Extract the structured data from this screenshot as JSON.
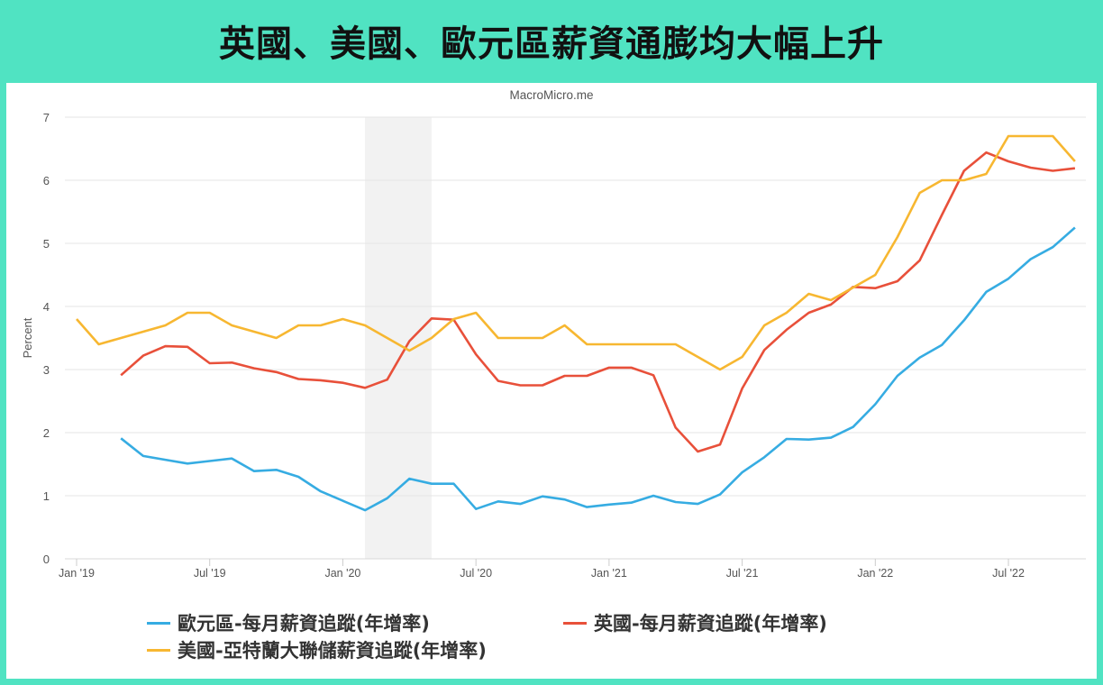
{
  "title": "英國、美國、歐元區薪資通膨均大幅上升",
  "chart_data": {
    "type": "line",
    "credit": "MacroMicro.me",
    "ylabel": "Percent",
    "ylim": [
      0,
      7
    ],
    "yticks": [
      0,
      1,
      2,
      3,
      4,
      5,
      6,
      7
    ],
    "xticks": [
      {
        "label": "Jan '19",
        "date": "2019-01"
      },
      {
        "label": "Jul '19",
        "date": "2019-07"
      },
      {
        "label": "Jan '20",
        "date": "2020-01"
      },
      {
        "label": "Jul '20",
        "date": "2020-07"
      },
      {
        "label": "Jan '21",
        "date": "2021-01"
      },
      {
        "label": "Jul '21",
        "date": "2021-07"
      },
      {
        "label": "Jan '22",
        "date": "2022-01"
      },
      {
        "label": "Jul '22",
        "date": "2022-07"
      }
    ],
    "grid": true,
    "legend_position": "bottom",
    "shaded_band": {
      "from": "2020-02",
      "to": "2020-05",
      "color": "#f2f2f2"
    },
    "series": [
      {
        "name": "歐元區-每月薪資追蹤(年增率)",
        "color": "#36ace2",
        "start": "2019-03",
        "values": [
          1.91,
          1.63,
          1.57,
          1.51,
          1.55,
          1.59,
          1.39,
          1.41,
          1.3,
          1.07,
          0.92,
          0.77,
          0.96,
          1.27,
          1.19,
          1.19,
          0.79,
          0.91,
          0.87,
          0.99,
          0.94,
          0.82,
          0.86,
          0.89,
          1.0,
          0.9,
          0.87,
          1.02,
          1.37,
          1.61,
          1.9,
          1.89,
          1.92,
          2.09,
          2.45,
          2.9,
          3.19,
          3.39,
          3.78,
          4.23,
          4.44,
          4.75,
          4.94,
          5.25
        ]
      },
      {
        "name": "英國-每月薪資追蹤(年增率)",
        "color": "#e8503a",
        "start": "2019-03",
        "values": [
          2.91,
          3.22,
          3.37,
          3.36,
          3.1,
          3.11,
          3.02,
          2.96,
          2.85,
          2.83,
          2.79,
          2.71,
          2.84,
          3.45,
          3.81,
          3.79,
          3.24,
          2.82,
          2.75,
          2.75,
          2.9,
          2.9,
          3.03,
          3.03,
          2.91,
          2.08,
          1.7,
          1.81,
          2.7,
          3.31,
          3.63,
          3.9,
          4.03,
          4.31,
          4.29,
          4.4,
          4.73,
          5.45,
          6.15,
          6.44,
          6.3,
          6.2,
          6.15,
          6.19
        ]
      },
      {
        "name": "美國-亞特蘭大聯儲薪資追蹤(年增率)",
        "color": "#f7b731",
        "start": "2019-01",
        "values": [
          3.8,
          3.4,
          3.5,
          3.6,
          3.7,
          3.9,
          3.9,
          3.7,
          3.6,
          3.5,
          3.7,
          3.7,
          3.8,
          3.7,
          3.5,
          3.3,
          3.5,
          3.8,
          3.9,
          3.5,
          3.5,
          3.5,
          3.7,
          3.4,
          3.4,
          3.4,
          3.4,
          3.4,
          3.2,
          3.0,
          3.2,
          3.7,
          3.9,
          4.2,
          4.1,
          4.3,
          4.5,
          5.1,
          5.8,
          6.0,
          6.0,
          6.1,
          6.7,
          6.7,
          6.7,
          6.3
        ]
      }
    ]
  }
}
